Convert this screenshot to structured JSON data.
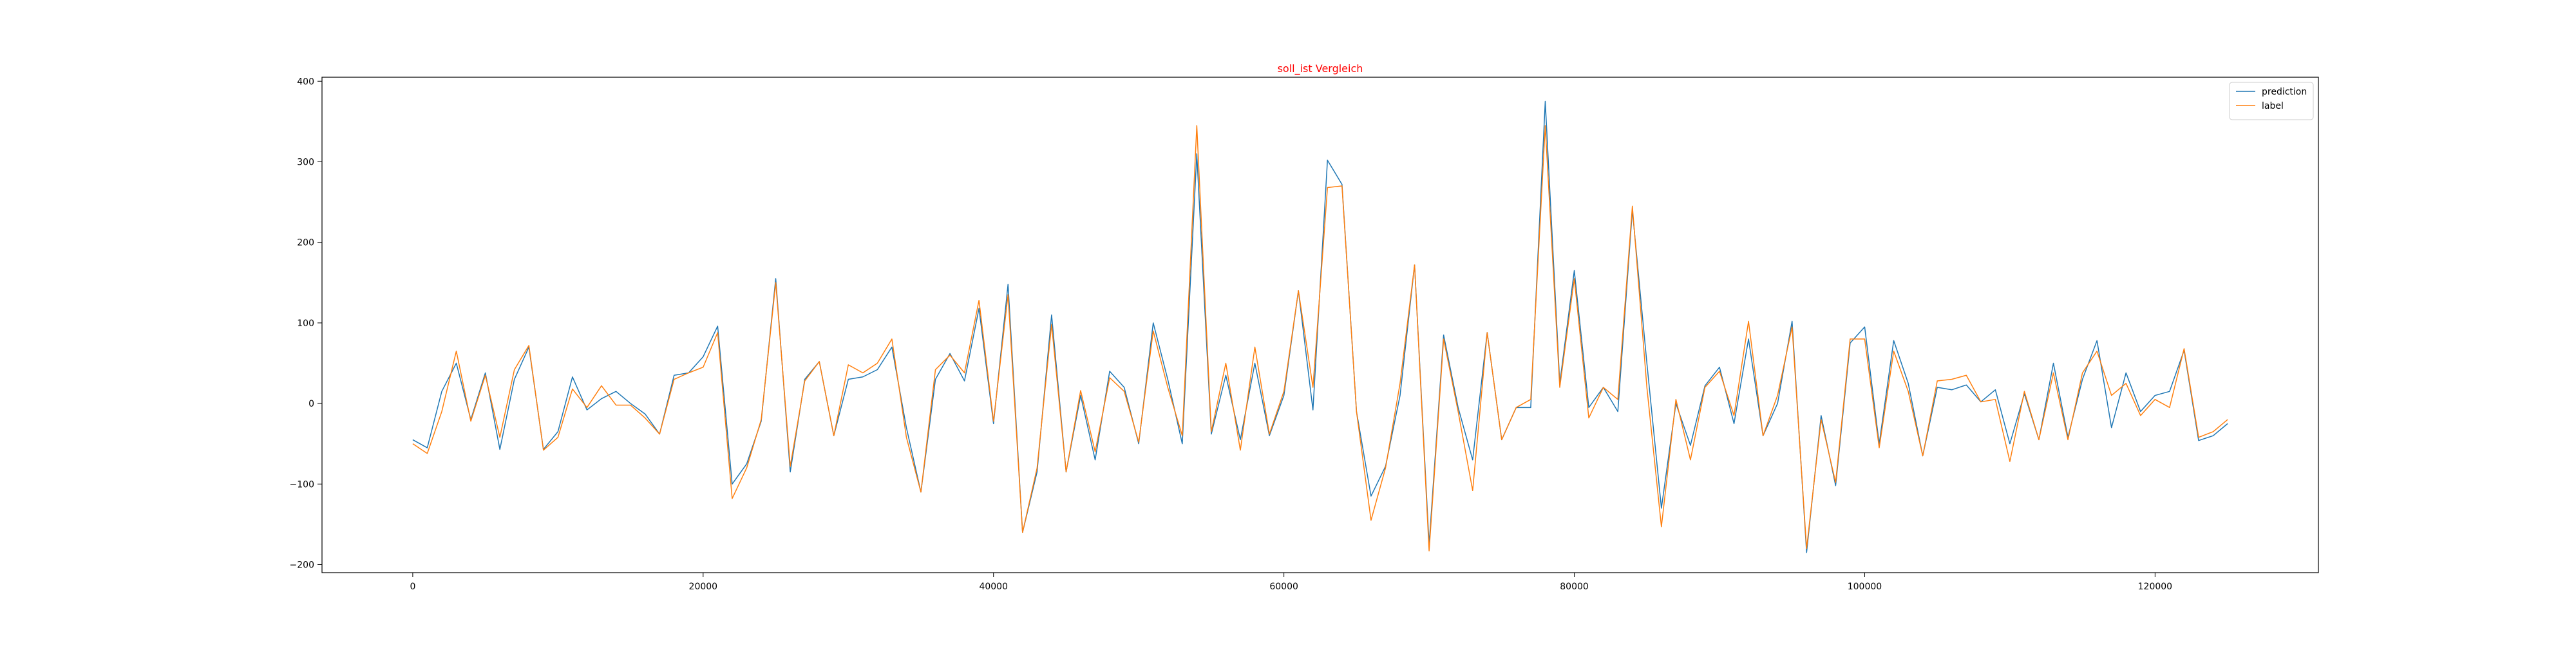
{
  "chart_data": {
    "type": "line",
    "title": "soll_ist Vergleich",
    "title_color": "#ff0000",
    "xlabel": "",
    "ylabel": "",
    "xlim": [
      -6250,
      131250
    ],
    "ylim": [
      -210,
      405
    ],
    "xticks": [
      0,
      20000,
      40000,
      60000,
      80000,
      100000,
      120000
    ],
    "yticks": [
      -200,
      -100,
      0,
      100,
      200,
      300,
      400
    ],
    "xtick_labels": [
      "0",
      "20000",
      "40000",
      "60000",
      "80000",
      "100000",
      "120000"
    ],
    "ytick_labels": [
      "−200",
      "−100",
      "0",
      "100",
      "200",
      "300",
      "400"
    ],
    "grid": false,
    "legend_position": "top-right",
    "x_start": 0,
    "x_step": 1000,
    "series": [
      {
        "name": "prediction",
        "color": "#1f77b4",
        "values": [
          -45,
          -55,
          15,
          50,
          -20,
          38,
          -57,
          30,
          70,
          -57,
          -35,
          33,
          -8,
          6,
          15,
          0,
          -13,
          -38,
          35,
          38,
          58,
          96,
          -100,
          -75,
          -22,
          155,
          -85,
          30,
          52,
          -40,
          30,
          33,
          42,
          70,
          -30,
          -110,
          30,
          62,
          28,
          118,
          -25,
          148,
          -160,
          -85,
          110,
          -85,
          10,
          -70,
          40,
          20,
          -50,
          100,
          30,
          -50,
          310,
          -38,
          35,
          -45,
          50,
          -40,
          10,
          140,
          -8,
          302,
          272,
          -10,
          -115,
          -78,
          10,
          172,
          -175,
          85,
          -5,
          -70,
          88,
          -45,
          -5,
          -5,
          375,
          25,
          165,
          -5,
          20,
          -10,
          240,
          50,
          -130,
          0,
          -52,
          22,
          45,
          -25,
          80,
          -40,
          0,
          102,
          -185,
          -15,
          -102,
          75,
          95,
          -50,
          78,
          25,
          -65,
          20,
          17,
          23,
          2,
          17,
          -50,
          12,
          -45,
          50,
          -42,
          30,
          78,
          -30,
          38,
          -10,
          10,
          15,
          66,
          -46,
          -40,
          -25
        ]
      },
      {
        "name": "label",
        "color": "#ff7f0e",
        "values": [
          -50,
          -62,
          -10,
          65,
          -22,
          35,
          -42,
          42,
          72,
          -58,
          -42,
          18,
          -5,
          22,
          -2,
          -2,
          -18,
          -38,
          30,
          38,
          45,
          88,
          -118,
          -80,
          -20,
          150,
          -78,
          28,
          52,
          -40,
          48,
          38,
          50,
          80,
          -42,
          -110,
          42,
          60,
          38,
          128,
          -22,
          135,
          -160,
          -80,
          98,
          -85,
          16,
          -60,
          32,
          15,
          -48,
          90,
          20,
          -40,
          345,
          -35,
          50,
          -58,
          70,
          -38,
          15,
          140,
          20,
          268,
          270,
          -10,
          -145,
          -80,
          25,
          172,
          -183,
          80,
          -10,
          -108,
          88,
          -45,
          -5,
          5,
          345,
          20,
          155,
          -18,
          20,
          5,
          245,
          20,
          -153,
          5,
          -70,
          20,
          40,
          -15,
          102,
          -40,
          10,
          95,
          -180,
          -20,
          -98,
          80,
          80,
          -55,
          65,
          15,
          -65,
          28,
          30,
          35,
          2,
          5,
          -72,
          15,
          -45,
          38,
          -45,
          38,
          65,
          10,
          25,
          -15,
          5,
          -5,
          68,
          -42,
          -35,
          -20
        ]
      }
    ]
  }
}
